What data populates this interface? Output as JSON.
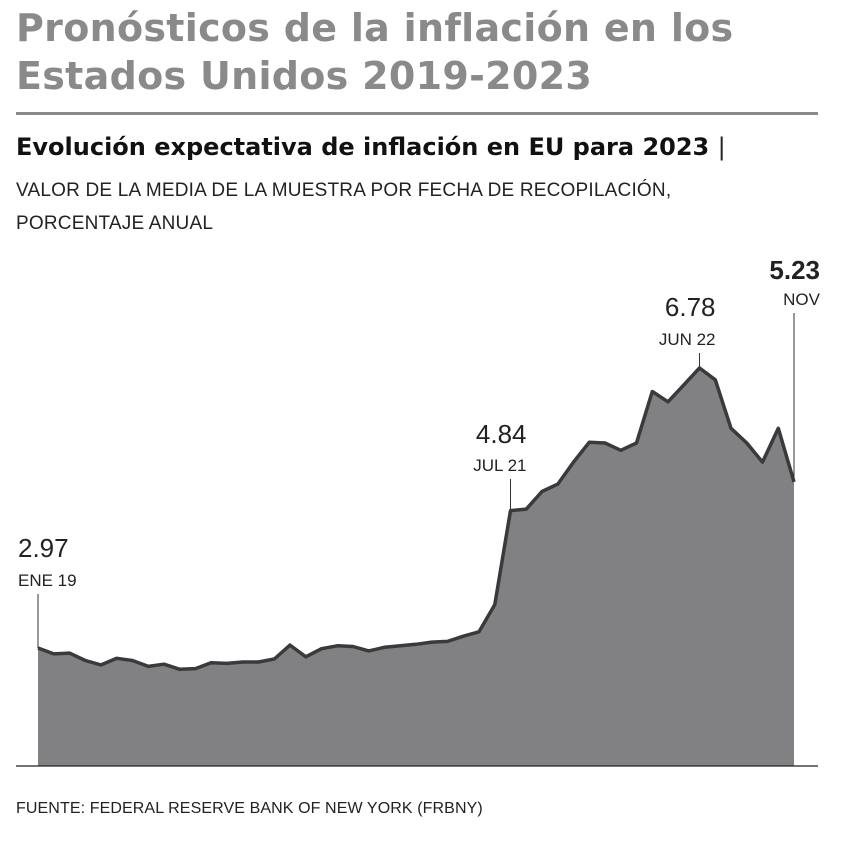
{
  "header": {
    "title_line1": "Pronósticos de la inflación en los",
    "title_line2": "Estados Unidos 2019-2023",
    "subtitle": "Evolución expectativa de inflación en EU para 2023",
    "separator": "|",
    "description_line1": "VALOR DE LA MEDIA DE LA MUESTRA POR FECHA DE RECOPILACIÓN,",
    "description_line2": "PORCENTAJE ANUAL"
  },
  "source": "FUENTE:  FEDERAL RESERVE BANK OF NEW YORK (FRBNY)",
  "colors": {
    "area": "#818184",
    "line": "#3a3a3c",
    "title": "#8a8a8a"
  },
  "chart_data": {
    "type": "area",
    "title": "Evolución expectativa de inflación en EU para 2023",
    "ylabel": "Porcentaje anual",
    "xlabel": "Fecha de recopilación",
    "x_range": [
      "Ene 2019",
      "Nov 2023"
    ],
    "ylim": [
      2.0,
      7.5
    ],
    "grid": false,
    "values": [
      2.97,
      2.89,
      2.9,
      2.8,
      2.74,
      2.83,
      2.8,
      2.72,
      2.75,
      2.68,
      2.69,
      2.77,
      2.76,
      2.78,
      2.78,
      2.82,
      3.01,
      2.85,
      2.96,
      3.0,
      2.99,
      2.93,
      2.98,
      3.0,
      3.02,
      3.05,
      3.06,
      3.13,
      3.19,
      3.56,
      4.84,
      4.86,
      5.1,
      5.2,
      5.5,
      5.77,
      5.76,
      5.66,
      5.76,
      6.46,
      6.32,
      6.55,
      6.78,
      6.62,
      5.96,
      5.76,
      5.5,
      5.96,
      5.23
    ],
    "annotations": [
      {
        "index": 0,
        "value": "2.97",
        "label": "ENE 19",
        "bold": false
      },
      {
        "index": 30,
        "value": "4.84",
        "label": "JUL 21",
        "bold": false
      },
      {
        "index": 42,
        "value": "6.78",
        "label": "JUN 22",
        "bold": false
      },
      {
        "index": 48,
        "value": "5.23",
        "label": "NOV",
        "bold": true
      }
    ]
  }
}
